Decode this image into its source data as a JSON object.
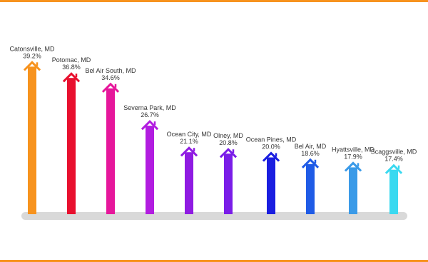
{
  "chart_data": {
    "type": "bar",
    "categories": [
      "Catonsville, MD",
      "Potomac, MD",
      "Bel Air South, MD",
      "Severna Park, MD",
      "Ocean City, MD",
      "Olney, MD",
      "Ocean Pines, MD",
      "Bel Air, MD",
      "Hyattsville, MD",
      "Scaggsville, MD"
    ],
    "values": [
      39.2,
      36.8,
      34.6,
      26.7,
      21.1,
      20.8,
      20.0,
      18.6,
      17.9,
      17.4
    ],
    "value_labels": [
      "39.2%",
      "36.8%",
      "34.6%",
      "26.7%",
      "21.1%",
      "20.8%",
      "20.0%",
      "18.6%",
      "17.9%",
      "17.4%"
    ],
    "colors": [
      "#f7931e",
      "#e8102e",
      "#e6179b",
      "#b21de0",
      "#8f1be2",
      "#7a1de8",
      "#1a1ee0",
      "#1f5be6",
      "#3a9ae8",
      "#3ad9f0"
    ],
    "ylim": [
      8,
      40
    ]
  }
}
